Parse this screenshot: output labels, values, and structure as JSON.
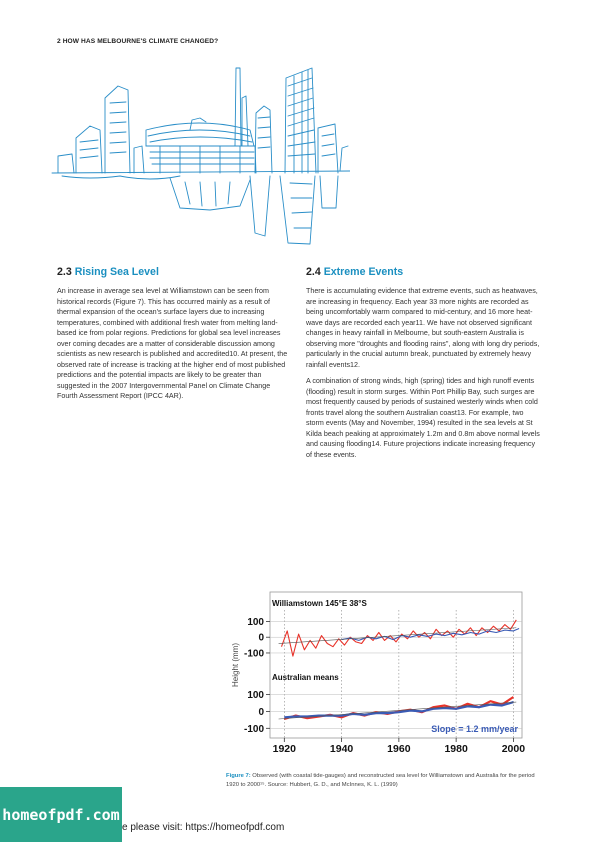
{
  "running_head": "2 HOW HAS MELBOURNE'S CLIMATE CHANGED?",
  "sections": [
    {
      "number": "2.3",
      "title": "Rising Sea Level",
      "paragraphs": [
        "An increase in average sea level at Williamstown can be seen from historical records (Figure 7). This has occurred mainly as a result of thermal expansion of the ocean's surface layers due to increasing temperatures, combined with additional fresh water from melting land-based ice from polar regions. Predictions for global sea level increases over coming decades are a matter of considerable discussion among scientists as new research is published and accredited10. At present, the observed rate of increase is tracking at the higher end of most published predictions and the potential impacts are likely to be greater than suggested in the 2007 Intergovernmental Panel on Climate Change Fourth Assessment Report (IPCC 4AR)."
      ]
    },
    {
      "number": "2.4",
      "title": "Extreme Events",
      "paragraphs": [
        "There is accumulating evidence that extreme events, such as heatwaves, are increasing in frequency. Each year 33 more nights are recorded as being uncomfortably warm compared to mid-century, and 16 more heat-wave days are recorded each year11. We have not observed significant changes in heavy rainfall in Melbourne, but south-eastern Australia is observing more \"droughts and flooding rains\", along with long dry periods, particularly in the crucial autumn break, punctuated by extremely heavy rainfall events12.",
        "A combination of strong winds, high (spring) tides and high runoff events (flooding) result in storm surges. Within Port Phillip Bay, such surges are most frequently caused by periods of sustained westerly winds when cold fronts travel along the southern Australian coast13. For example, two storm events (May and November, 1994) resulted in the sea levels at St Kilda beach peaking at approximately 1.2m and 0.8m above normal levels and causing flooding14. Future projections indicate increasing frequency of these events."
      ]
    }
  ],
  "chart_data": {
    "type": "line",
    "ylabel": "Height (mm)",
    "xlim": [
      1915,
      2003
    ],
    "x_ticks": [
      1920,
      1940,
      1960,
      1980,
      2000
    ],
    "grid": false,
    "panels": [
      {
        "title": "Williamstown 145°E 38°S",
        "ylim": [
          -170,
          160
        ],
        "y_ticks": [
          100,
          0,
          -100
        ],
        "series": [
          {
            "color": "#e8332a",
            "x": [
              1919,
              1921,
              1923,
              1925,
              1927,
              1929,
              1931,
              1933,
              1935,
              1937,
              1939,
              1941,
              1943,
              1945,
              1947,
              1949,
              1951,
              1953,
              1955,
              1957,
              1959,
              1961,
              1963,
              1965,
              1967,
              1969,
              1971,
              1973,
              1975,
              1977,
              1979,
              1981,
              1983,
              1985,
              1987,
              1989,
              1991,
              1993,
              1995,
              1997,
              1999,
              2001
            ],
            "y": [
              -60,
              40,
              -120,
              20,
              -80,
              -20,
              -70,
              10,
              -40,
              -60,
              -10,
              -50,
              0,
              -30,
              -40,
              10,
              -20,
              30,
              -20,
              10,
              -30,
              20,
              -10,
              40,
              0,
              30,
              -10,
              50,
              10,
              40,
              0,
              50,
              20,
              60,
              10,
              60,
              30,
              70,
              40,
              80,
              50,
              110
            ]
          },
          {
            "color": "#3a5bb5",
            "x": [
              1940,
              1943,
              1946,
              1949,
              1952,
              1955,
              1958,
              1961,
              1964,
              1967,
              1970,
              1973,
              1976,
              1979,
              1982,
              1985,
              1988,
              1991,
              1994,
              1997,
              2000,
              2002
            ],
            "y": [
              -15,
              -5,
              -20,
              0,
              -10,
              5,
              -15,
              10,
              0,
              15,
              5,
              20,
              10,
              25,
              15,
              30,
              20,
              40,
              30,
              45,
              40,
              55
            ]
          }
        ],
        "trend_y": [
          -40,
          60
        ]
      },
      {
        "title": "Australian means",
        "ylim": [
          -110,
          150
        ],
        "y_ticks": [
          100,
          0,
          -100
        ],
        "series": [
          {
            "color": "#e8332a",
            "x": [
              1920,
              1924,
              1928,
              1932,
              1936,
              1940,
              1944,
              1948,
              1952,
              1956,
              1960,
              1964,
              1968,
              1972,
              1976,
              1980,
              1984,
              1988,
              1992,
              1996,
              2000
            ],
            "y": [
              -45,
              -25,
              -40,
              -30,
              -20,
              -35,
              -10,
              -25,
              -5,
              -15,
              0,
              10,
              -5,
              25,
              35,
              15,
              45,
              25,
              60,
              40,
              85
            ]
          },
          {
            "color": "#3a5bb5",
            "x": [
              1920,
              1924,
              1928,
              1932,
              1936,
              1940,
              1944,
              1948,
              1952,
              1956,
              1960,
              1964,
              1968,
              1972,
              1976,
              1980,
              1984,
              1988,
              1992,
              1996,
              2000
            ],
            "y": [
              -35,
              -30,
              -30,
              -25,
              -25,
              -25,
              -15,
              -20,
              -10,
              -10,
              -5,
              5,
              0,
              15,
              20,
              15,
              30,
              25,
              40,
              35,
              55
            ]
          }
        ],
        "trend_y": [
          -45,
          55
        ],
        "annotation": "Slope = 1.2 mm/year"
      }
    ]
  },
  "caption": {
    "label": "Figure 7:",
    "text": " Observed (with coastal tide-gauges) and reconstructed sea level for Williamstown and Australia for the period 1920 to 2000¹⁵. Source: Hubbert, G. D., and McInnes, K. L. (1999)"
  },
  "watermark": "homeofpdf.com",
  "visit_text": "e please visit: https://homeofpdf.com",
  "colors": {
    "accent_blue": "#1a8fc0",
    "sketch_blue": "#2a8ec8",
    "series_red": "#e8332a",
    "series_blue": "#3a5bb5",
    "watermark_bg": "#2aa58b"
  }
}
